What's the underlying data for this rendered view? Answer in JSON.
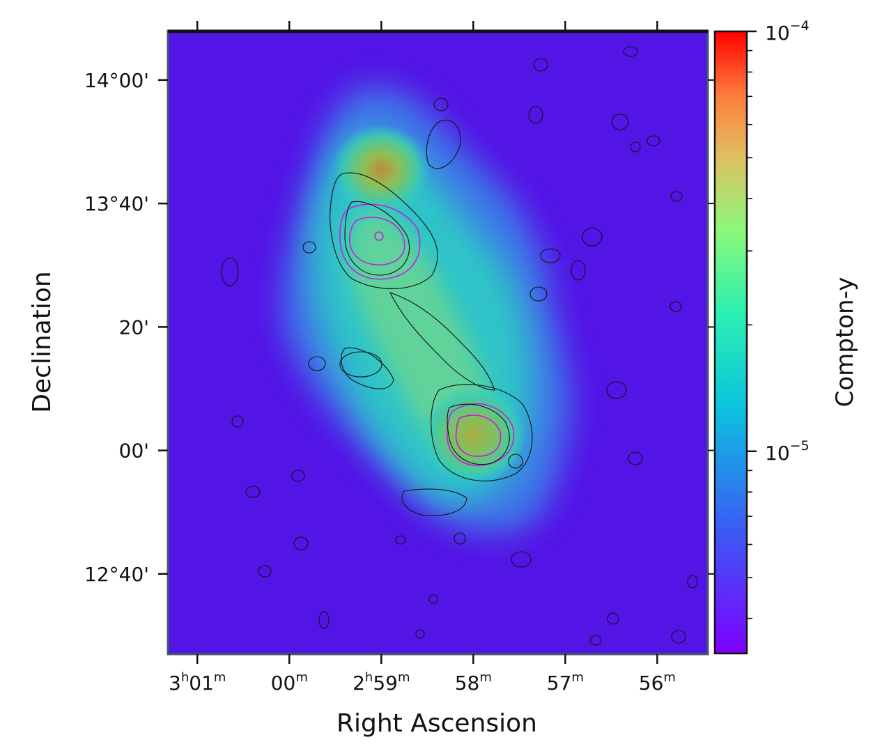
{
  "chart_data": {
    "type": "heatmap",
    "title": "",
    "xlabel": "Right Ascension",
    "ylabel": "Declination",
    "x_ticks": [
      {
        "label": "3",
        "sup1": "h",
        "mid": "01",
        "sup2": "m",
        "ra_min": 181
      },
      {
        "label": "00",
        "sup1": "m",
        "mid": "",
        "sup2": "",
        "ra_min": 180
      },
      {
        "label": "2",
        "sup1": "h",
        "mid": "59",
        "sup2": "m",
        "ra_min": 179
      },
      {
        "label": "58",
        "sup1": "m",
        "mid": "",
        "sup2": "",
        "ra_min": 178
      },
      {
        "label": "57",
        "sup1": "m",
        "mid": "",
        "sup2": "",
        "ra_min": 177
      },
      {
        "label": "56",
        "sup1": "m",
        "mid": "",
        "sup2": "",
        "ra_min": 176
      }
    ],
    "xlim_ra_min": [
      181.32,
      175.45
    ],
    "y_ticks": [
      {
        "label": "14°00'",
        "dec_arcmin": 840
      },
      {
        "label": "13°40'",
        "dec_arcmin": 820
      },
      {
        "label": "20'",
        "dec_arcmin": 800
      },
      {
        "label": "00'",
        "dec_arcmin": 780
      },
      {
        "label": "12°40'",
        "dec_arcmin": 760
      }
    ],
    "ylim_dec_arcmin": [
      747,
      848
    ],
    "colorbar": {
      "label": "Compton-y",
      "scale": "log",
      "range": [
        3.3e-06,
        0.0001
      ],
      "tick_labels": [
        {
          "base": "10",
          "exp": "−4",
          "value": 0.0001
        },
        {
          "base": "10",
          "exp": "−5",
          "value": 1e-05
        }
      ],
      "colormap": "rainbow"
    },
    "emission_peaks": [
      {
        "ra_min": 179.0,
        "dec_arcmin": 825.5,
        "y": 5e-05
      },
      {
        "ra_min": 178.0,
        "dec_arcmin": 782.5,
        "y": 4e-05
      }
    ],
    "background_y": 3.5e-06,
    "overlays": [
      "black contours",
      "magenta contours"
    ]
  }
}
